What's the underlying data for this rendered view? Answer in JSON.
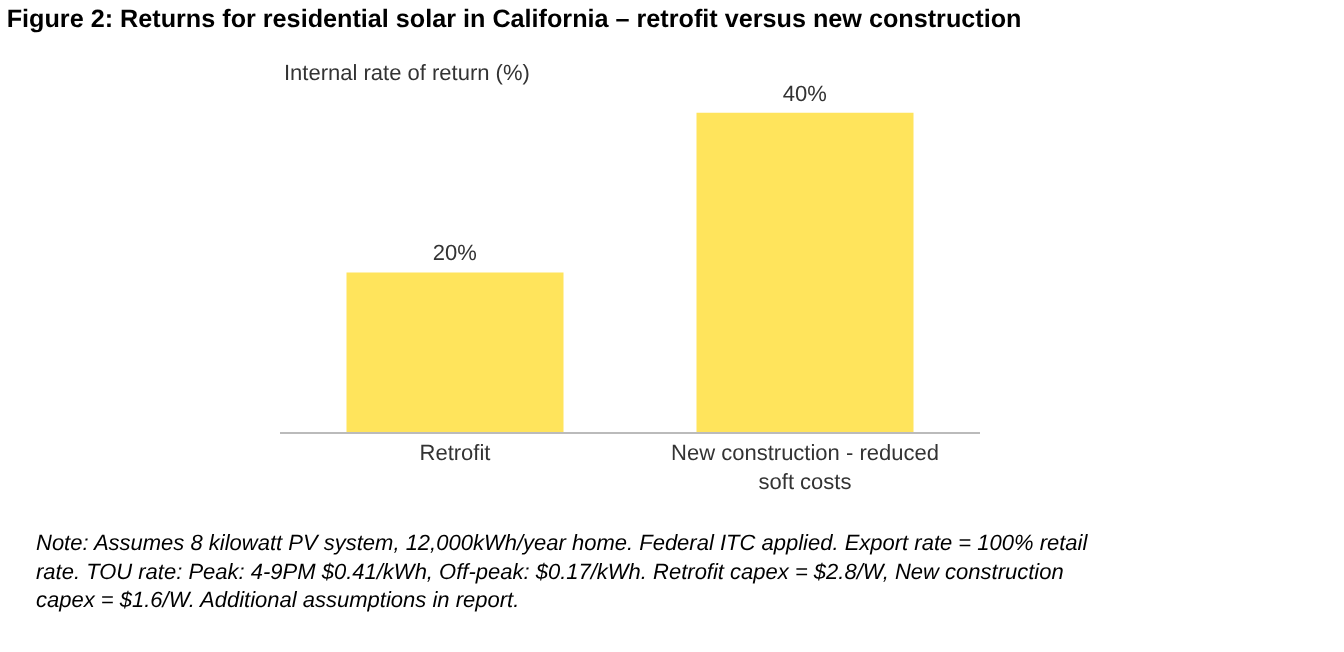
{
  "chart_data": {
    "type": "bar",
    "title": "Figure 2: Returns for residential solar in California – retrofit versus new construction",
    "ylabel": "Internal rate of return (%)",
    "categories": [
      "Retrofit",
      "New construction - reduced soft costs"
    ],
    "values": [
      20,
      40
    ],
    "value_labels": [
      "20%",
      "40%"
    ],
    "color": "#ffe45c",
    "grid": false,
    "legend": false,
    "annotations": [
      "Note: Assumes 8 kilowatt PV system, 12,000kWh/year home. Federal ITC applied. Export rate = 100% retail rate. TOU rate: Peak: 4-9PM $0.41/kWh, Off-peak: $0.17/kWh. Retrofit capex = $2.8/W, New construction capex = $1.6/W. Additional assumptions in report."
    ]
  }
}
